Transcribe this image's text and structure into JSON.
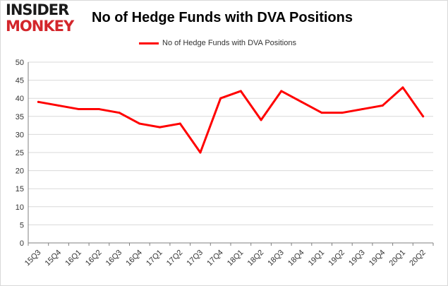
{
  "logo": {
    "line1": "INSIDER",
    "line2": "MONKEY"
  },
  "title": "No of Hedge Funds with DVA Positions",
  "legend": {
    "label": "No of Hedge Funds with DVA Positions"
  },
  "colors": {
    "series": "#ff0000",
    "grid": "#d9d9d9",
    "axis": "#808080",
    "brand_red": "#d3262b"
  },
  "chart_data": {
    "type": "line",
    "title": "No of Hedge Funds with DVA Positions",
    "xlabel": "",
    "ylabel": "",
    "categories": [
      "15Q3",
      "15Q4",
      "16Q1",
      "16Q2",
      "16Q3",
      "16Q4",
      "17Q1",
      "17Q2",
      "17Q3",
      "17Q4",
      "18Q1",
      "18Q2",
      "18Q3",
      "18Q4",
      "19Q1",
      "19Q2",
      "19Q3",
      "19Q4",
      "20Q1",
      "20Q2"
    ],
    "series": [
      {
        "name": "No of Hedge Funds with DVA Positions",
        "values": [
          39,
          38,
          37,
          37,
          36,
          33,
          32,
          33,
          25,
          40,
          42,
          34,
          42,
          39,
          36,
          36,
          37,
          38,
          43,
          35
        ]
      }
    ],
    "ylim": [
      0,
      50
    ],
    "yticks": [
      0,
      5,
      10,
      15,
      20,
      25,
      30,
      35,
      40,
      45,
      50
    ],
    "grid": true,
    "legend_position": "top-center"
  }
}
